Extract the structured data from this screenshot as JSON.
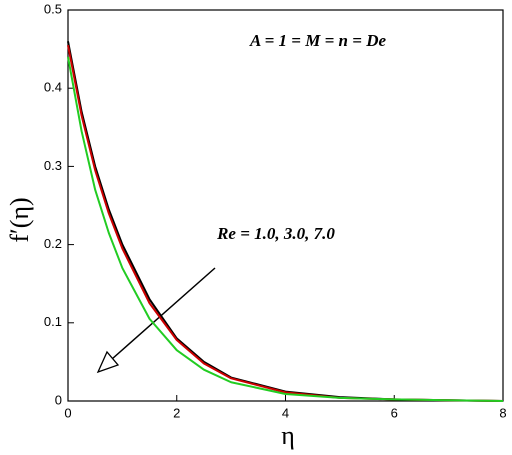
{
  "chart_data": {
    "type": "line",
    "x_label": "η",
    "y_label": "f′(η)",
    "annotations": [
      {
        "text": "A = 1 = M = n = De",
        "color": "#22cc22"
      },
      {
        "text": "Re = 1.0, 3.0, 7.0",
        "color": "#000000"
      }
    ],
    "x": [
      0,
      0.25,
      0.5,
      0.75,
      1,
      1.5,
      2,
      2.5,
      3,
      4,
      5,
      6,
      7,
      8
    ],
    "series": [
      {
        "color": "#000000",
        "values": [
          0.46,
          0.37,
          0.3,
          0.245,
          0.2,
          0.13,
          0.08,
          0.05,
          0.03,
          0.012,
          0.005,
          0.002,
          0.001,
          0
        ]
      },
      {
        "color": "#cc0000",
        "values": [
          0.455,
          0.365,
          0.295,
          0.24,
          0.195,
          0.125,
          0.078,
          0.048,
          0.029,
          0.011,
          0.004,
          0.002,
          0.001,
          0
        ]
      },
      {
        "color": "#22cc22",
        "values": [
          0.44,
          0.345,
          0.27,
          0.215,
          0.17,
          0.105,
          0.065,
          0.04,
          0.024,
          0.009,
          0.004,
          0.002,
          0.001,
          0
        ]
      }
    ],
    "xlim": [
      0,
      8
    ],
    "ylim": [
      0,
      0.5
    ],
    "xticks": [
      0,
      2,
      4,
      6,
      8
    ],
    "yticks": [
      0,
      0.1,
      0.2,
      0.3,
      0.4,
      0.5
    ],
    "grid": false
  }
}
